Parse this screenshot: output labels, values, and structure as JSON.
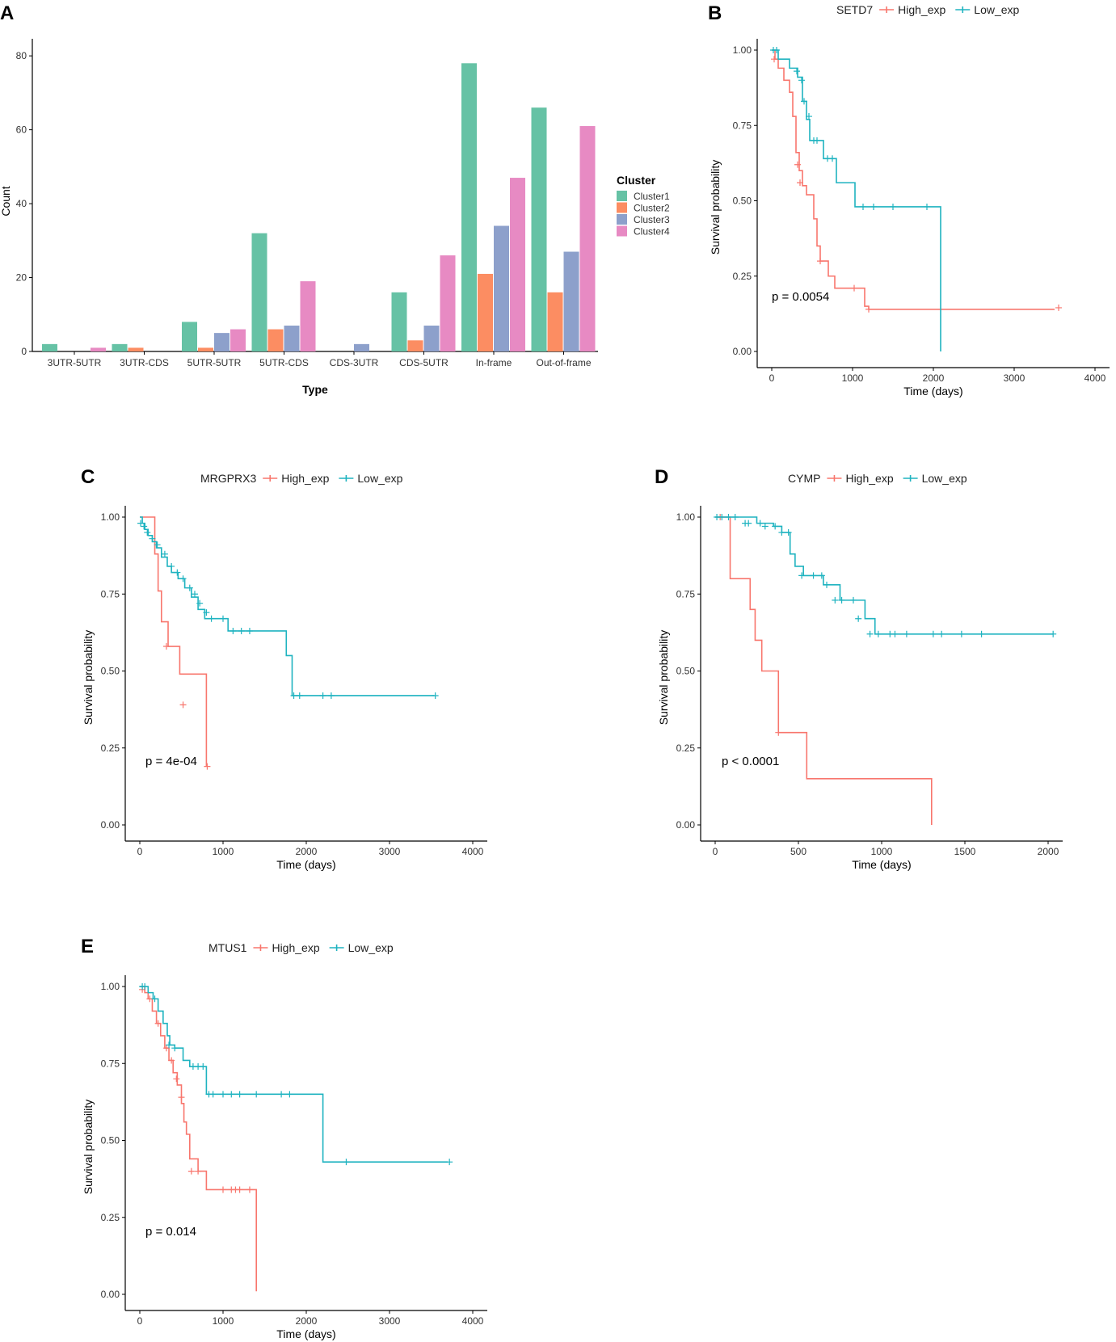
{
  "colors": {
    "cluster1": "#66C2A5",
    "cluster2": "#FC8D62",
    "cluster3": "#8DA0CB",
    "cluster4": "#E78AC3",
    "high": "#F8766D",
    "low": "#1FB3C0"
  },
  "chart_data": [
    {
      "id": "A",
      "type": "bar",
      "panel_label": "A",
      "xlabel": "Type",
      "ylabel": "Count",
      "ylim": [
        0,
        82
      ],
      "yticks": [
        0,
        20,
        40,
        60,
        80
      ],
      "categories": [
        "3UTR-5UTR",
        "3UTR-CDS",
        "5UTR-5UTR",
        "5UTR-CDS",
        "CDS-3UTR",
        "CDS-5UTR",
        "In-frame",
        "Out-of-frame"
      ],
      "legend_title": "Cluster",
      "series": [
        {
          "name": "Cluster1",
          "values": [
            2,
            2,
            8,
            32,
            0,
            16,
            78,
            66
          ]
        },
        {
          "name": "Cluster2",
          "values": [
            0,
            1,
            1,
            6,
            0,
            3,
            21,
            16
          ]
        },
        {
          "name": "Cluster3",
          "values": [
            0,
            0,
            5,
            7,
            2,
            7,
            34,
            27
          ]
        },
        {
          "name": "Cluster4",
          "values": [
            1,
            0,
            6,
            19,
            0,
            26,
            47,
            61
          ]
        }
      ]
    },
    {
      "id": "B",
      "type": "line",
      "panel_label": "B",
      "gene": "SETD7",
      "legend": [
        "High_exp",
        "Low_exp"
      ],
      "xlabel": "Time (days)",
      "ylabel": "Survival probability",
      "xlim": [
        0,
        4000
      ],
      "xticks": [
        0,
        1000,
        2000,
        3000,
        4000
      ],
      "yticks": [
        "0.00",
        "0.25",
        "0.50",
        "0.75",
        "1.00"
      ],
      "pvalue": "p = 0.0054",
      "series": [
        {
          "name": "High_exp",
          "x": [
            0,
            40,
            80,
            150,
            220,
            260,
            300,
            340,
            380,
            430,
            480,
            520,
            560,
            600,
            700,
            780,
            1150,
            1200,
            3500
          ],
          "y": [
            1.0,
            0.97,
            0.94,
            0.9,
            0.86,
            0.78,
            0.66,
            0.6,
            0.55,
            0.52,
            0.52,
            0.44,
            0.35,
            0.3,
            0.25,
            0.21,
            0.15,
            0.14,
            0.14
          ],
          "censor_x": [
            30,
            320,
            350,
            600,
            1020,
            1200,
            3550
          ],
          "censor_y": [
            0.97,
            0.62,
            0.56,
            0.3,
            0.21,
            0.14,
            0.145
          ]
        },
        {
          "name": "Low_exp",
          "x": [
            0,
            30,
            80,
            220,
            320,
            380,
            430,
            470,
            550,
            640,
            800,
            1030,
            2090,
            2090
          ],
          "y": [
            1.0,
            1.0,
            0.97,
            0.94,
            0.91,
            0.83,
            0.77,
            0.7,
            0.7,
            0.64,
            0.56,
            0.48,
            0.48,
            0.0
          ],
          "censor_x": [
            20,
            60,
            310,
            370,
            400,
            460,
            520,
            560,
            690,
            750,
            1130,
            1260,
            1500,
            1920
          ],
          "censor_y": [
            1.0,
            1.0,
            0.93,
            0.9,
            0.83,
            0.78,
            0.7,
            0.7,
            0.64,
            0.64,
            0.48,
            0.48,
            0.48,
            0.48
          ]
        }
      ]
    },
    {
      "id": "C",
      "type": "line",
      "panel_label": "C",
      "gene": "MRGPRX3",
      "legend": [
        "High_exp",
        "Low_exp"
      ],
      "xlabel": "Time (days)",
      "ylabel": "Survival probability",
      "xlim": [
        0,
        4000
      ],
      "xticks": [
        0,
        1000,
        2000,
        3000,
        4000
      ],
      "yticks": [
        "0.00",
        "0.25",
        "0.50",
        "0.75",
        "1.00"
      ],
      "pvalue": "p = 4e-04",
      "series": [
        {
          "name": "High_exp",
          "x": [
            0,
            140,
            180,
            220,
            260,
            340,
            480,
            800,
            800
          ],
          "y": [
            1.0,
            1.0,
            0.88,
            0.76,
            0.66,
            0.58,
            0.49,
            0.39,
            0.19
          ],
          "censor_x": [
            320,
            520,
            810
          ],
          "censor_y": [
            0.58,
            0.39,
            0.19
          ]
        },
        {
          "name": "Low_exp",
          "x": [
            0,
            30,
            60,
            100,
            150,
            200,
            260,
            330,
            380,
            460,
            540,
            620,
            700,
            780,
            1000,
            1060,
            1690,
            1760,
            1830,
            3540
          ],
          "y": [
            1.0,
            0.98,
            0.96,
            0.94,
            0.92,
            0.9,
            0.87,
            0.84,
            0.82,
            0.8,
            0.77,
            0.74,
            0.7,
            0.67,
            0.67,
            0.63,
            0.63,
            0.55,
            0.42,
            0.42
          ],
          "censor_x": [
            10,
            50,
            90,
            150,
            210,
            300,
            380,
            450,
            520,
            600,
            660,
            720,
            800,
            860,
            1000,
            1120,
            1220,
            1320,
            1850,
            1920,
            2200,
            2300,
            3550
          ],
          "censor_y": [
            0.98,
            0.97,
            0.95,
            0.93,
            0.91,
            0.88,
            0.84,
            0.82,
            0.8,
            0.77,
            0.75,
            0.72,
            0.69,
            0.67,
            0.67,
            0.63,
            0.63,
            0.63,
            0.42,
            0.42,
            0.42,
            0.42,
            0.42
          ]
        }
      ]
    },
    {
      "id": "D",
      "type": "line",
      "panel_label": "D",
      "gene": "CYMP",
      "legend": [
        "High_exp",
        "Low_exp"
      ],
      "xlabel": "Time (days)",
      "ylabel": "Survival probability",
      "xlim": [
        0,
        2000
      ],
      "xticks": [
        0,
        500,
        1000,
        1500,
        2000
      ],
      "yticks": [
        "0.00",
        "0.25",
        "0.50",
        "0.75",
        "1.00"
      ],
      "pvalue": "p < 0.0001",
      "series": [
        {
          "name": "High_exp",
          "x": [
            0,
            40,
            90,
            180,
            210,
            240,
            280,
            360,
            380,
            550,
            1300,
            1300
          ],
          "y": [
            1.0,
            1.0,
            0.8,
            0.8,
            0.7,
            0.6,
            0.5,
            0.5,
            0.3,
            0.15,
            0.15,
            0.0
          ],
          "censor_x": [
            30,
            380
          ],
          "censor_y": [
            1.0,
            0.3
          ]
        },
        {
          "name": "Low_exp",
          "x": [
            0,
            100,
            250,
            350,
            400,
            450,
            480,
            530,
            580,
            650,
            750,
            830,
            900,
            960,
            2030
          ],
          "y": [
            1.0,
            1.0,
            0.98,
            0.97,
            0.95,
            0.88,
            0.84,
            0.81,
            0.81,
            0.78,
            0.73,
            0.73,
            0.67,
            0.62,
            0.62
          ],
          "censor_x": [
            10,
            40,
            80,
            120,
            180,
            200,
            270,
            300,
            360,
            400,
            440,
            520,
            590,
            640,
            670,
            720,
            760,
            830,
            860,
            930,
            980,
            1050,
            1080,
            1150,
            1310,
            1360,
            1480,
            1600,
            2030
          ],
          "censor_y": [
            1.0,
            1.0,
            1.0,
            1.0,
            0.98,
            0.98,
            0.98,
            0.97,
            0.97,
            0.95,
            0.95,
            0.81,
            0.81,
            0.81,
            0.78,
            0.73,
            0.73,
            0.73,
            0.67,
            0.62,
            0.62,
            0.62,
            0.62,
            0.62,
            0.62,
            0.62,
            0.62,
            0.62,
            0.62
          ]
        }
      ]
    },
    {
      "id": "E",
      "type": "line",
      "panel_label": "E",
      "gene": "MTUS1",
      "legend": [
        "High_exp",
        "Low_exp"
      ],
      "xlabel": "Time (days)",
      "ylabel": "Survival probability",
      "xlim": [
        0,
        4000
      ],
      "xticks": [
        0,
        1000,
        2000,
        3000,
        4000
      ],
      "yticks": [
        "0.00",
        "0.25",
        "0.50",
        "0.75",
        "1.00"
      ],
      "pvalue": "p = 0.014",
      "series": [
        {
          "name": "High_exp",
          "x": [
            0,
            60,
            100,
            150,
            200,
            250,
            300,
            350,
            400,
            450,
            500,
            530,
            560,
            600,
            700,
            800,
            1400,
            1400
          ],
          "y": [
            1.0,
            0.98,
            0.96,
            0.92,
            0.88,
            0.84,
            0.8,
            0.76,
            0.72,
            0.68,
            0.62,
            0.56,
            0.52,
            0.44,
            0.4,
            0.34,
            0.34,
            0.01
          ],
          "censor_x": [
            30,
            120,
            220,
            320,
            380,
            440,
            500,
            620,
            700,
            1000,
            1100,
            1150,
            1200,
            1320
          ],
          "censor_y": [
            0.99,
            0.96,
            0.88,
            0.8,
            0.76,
            0.7,
            0.64,
            0.4,
            0.4,
            0.34,
            0.34,
            0.34,
            0.34,
            0.34
          ]
        },
        {
          "name": "Low_exp",
          "x": [
            0,
            40,
            100,
            160,
            220,
            280,
            330,
            360,
            420,
            520,
            600,
            780,
            800,
            2200,
            2200,
            3700
          ],
          "y": [
            1.0,
            1.0,
            0.98,
            0.96,
            0.92,
            0.88,
            0.84,
            0.81,
            0.8,
            0.76,
            0.74,
            0.74,
            0.65,
            0.65,
            0.43,
            0.43
          ],
          "censor_x": [
            30,
            60,
            180,
            350,
            420,
            640,
            700,
            760,
            830,
            880,
            1000,
            1100,
            1200,
            1400,
            1700,
            1800,
            2480,
            3720
          ],
          "censor_y": [
            1.0,
            1.0,
            0.96,
            0.81,
            0.8,
            0.74,
            0.74,
            0.74,
            0.65,
            0.65,
            0.65,
            0.65,
            0.65,
            0.65,
            0.65,
            0.65,
            0.43,
            0.43
          ]
        }
      ]
    }
  ]
}
